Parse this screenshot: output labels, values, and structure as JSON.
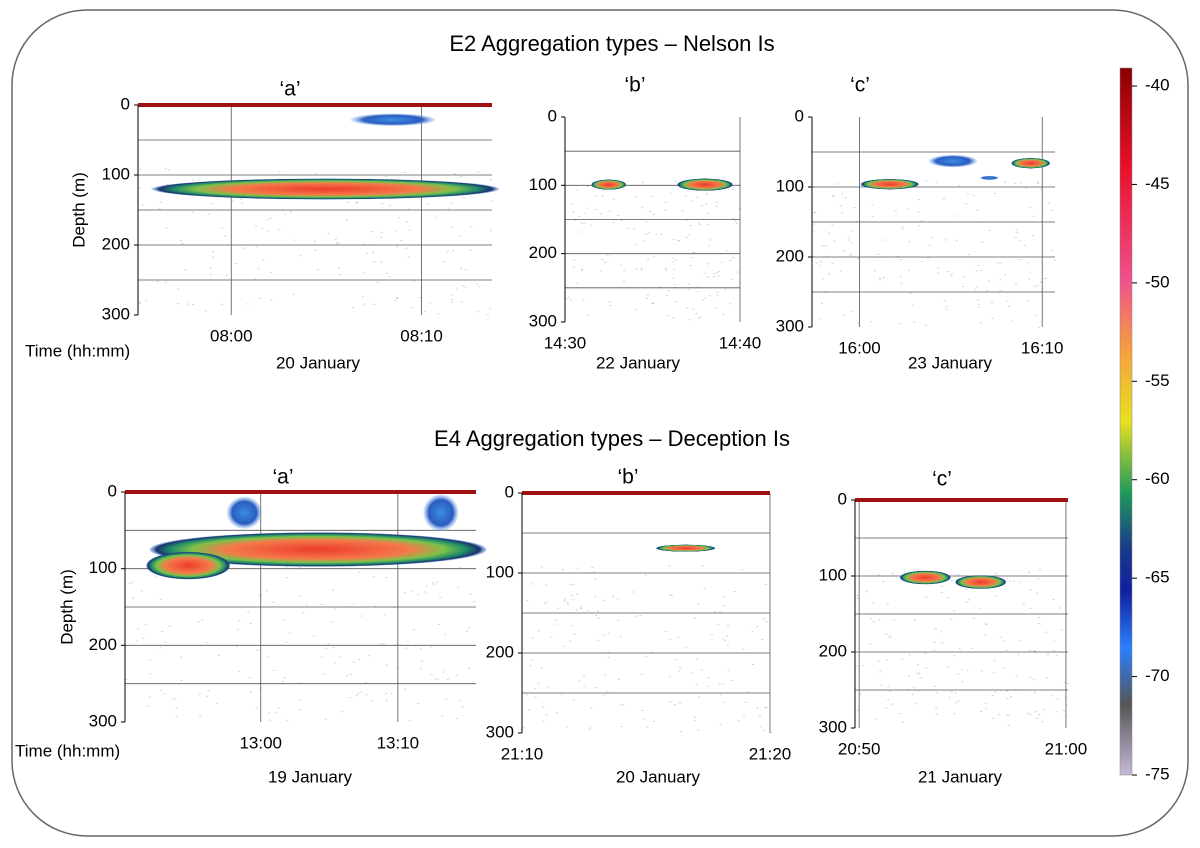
{
  "figure_titles": [
    "E2 Aggregation types – Nelson Is",
    "E4 Aggregation types – Deception Is"
  ],
  "chart_data": [
    {
      "type": "echogram",
      "title": "‘a’",
      "ylabel": "Depth (m)",
      "xlabel": "Time (hh:mm)",
      "date": "20 January",
      "ylim": [
        0,
        300
      ],
      "yticks": [
        0,
        100,
        200,
        300
      ],
      "gridlines": [
        50,
        100,
        150,
        200,
        250
      ],
      "xlim": [
        475.1,
        493.7
      ],
      "xticks": [
        {
          "value": 480,
          "label": "08:00"
        },
        {
          "value": 490,
          "label": "08:10"
        }
      ],
      "surface_line": true
    },
    {
      "type": "echogram",
      "title": "‘b’",
      "date": "22 January",
      "ylim": [
        0,
        300
      ],
      "yticks": [
        0,
        100,
        200,
        300
      ],
      "gridlines": [
        50,
        100,
        150,
        200,
        250
      ],
      "xlim": [
        870,
        880
      ],
      "xticks": [
        {
          "value": 870,
          "label": "14:30"
        },
        {
          "value": 880,
          "label": "14:40"
        }
      ],
      "surface_line": false
    },
    {
      "type": "echogram",
      "title": "‘c’",
      "date": "23 January",
      "ylim": [
        0,
        300
      ],
      "yticks": [
        0,
        100,
        200,
        300
      ],
      "gridlines": [
        50,
        100,
        150,
        200,
        250
      ],
      "xlim": [
        957.4,
        970.7
      ],
      "xticks": [
        {
          "value": 960,
          "label": "16:00"
        },
        {
          "value": 970,
          "label": "16:10"
        }
      ],
      "surface_line": false
    },
    {
      "type": "echogram",
      "title": "‘a’",
      "ylabel": "Depth (m)",
      "xlabel": "Time (hh:mm)",
      "date": "19 January",
      "ylim": [
        0,
        300
      ],
      "yticks": [
        0,
        100,
        200,
        300
      ],
      "gridlines": [
        50,
        100,
        150,
        200,
        250
      ],
      "xlim": [
        770.1,
        795.7
      ],
      "xticks": [
        {
          "value": 780,
          "label": "13:00"
        },
        {
          "value": 790,
          "label": "13:10"
        }
      ],
      "surface_line": true
    },
    {
      "type": "echogram",
      "title": "‘b’",
      "date": "20 January",
      "ylim": [
        0,
        300
      ],
      "yticks": [
        0,
        100,
        200,
        300
      ],
      "gridlines": [
        50,
        100,
        150,
        200,
        250
      ],
      "xlim": [
        1270,
        1280
      ],
      "xticks": [
        {
          "value": 1270,
          "label": "21:10"
        },
        {
          "value": 1280,
          "label": "21:20"
        }
      ],
      "surface_line": true
    },
    {
      "type": "echogram",
      "title": "‘c’",
      "date": "21 January",
      "ylim": [
        0,
        300
      ],
      "yticks": [
        0,
        100,
        200,
        300
      ],
      "gridlines": [
        50,
        100,
        150,
        200,
        250
      ],
      "xlim": [
        1249.8,
        1260.1
      ],
      "xticks": [
        {
          "value": 1250,
          "label": "20:50"
        },
        {
          "value": 1260,
          "label": "21:00"
        }
      ],
      "surface_line": true
    },
    {
      "type": "colorbar",
      "ylim": [
        -75,
        -40
      ],
      "yticks": [
        -40,
        -45,
        -50,
        -55,
        -60,
        -65,
        -70,
        -75
      ]
    }
  ]
}
